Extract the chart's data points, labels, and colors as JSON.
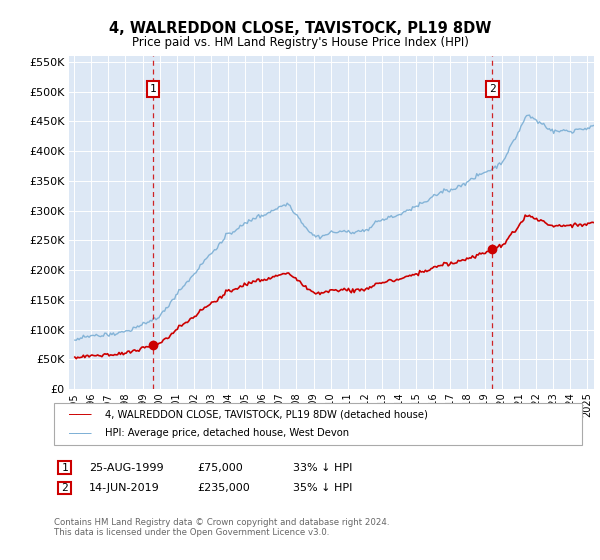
{
  "title": "4, WALREDDON CLOSE, TAVISTOCK, PL19 8DW",
  "subtitle": "Price paid vs. HM Land Registry's House Price Index (HPI)",
  "legend_line1": "4, WALREDDON CLOSE, TAVISTOCK, PL19 8DW (detached house)",
  "legend_line2": "HPI: Average price, detached house, West Devon",
  "transaction1_date": "25-AUG-1999",
  "transaction1_price": 75000,
  "transaction1_hpi": "33% ↓ HPI",
  "transaction2_date": "14-JUN-2019",
  "transaction2_price": 235000,
  "transaction2_hpi": "35% ↓ HPI",
  "footer": "Contains HM Land Registry data © Crown copyright and database right 2024.\nThis data is licensed under the Open Government Licence v3.0.",
  "property_color": "#cc0000",
  "hpi_color": "#7aaed4",
  "background_color": "#dde8f5",
  "ylim": [
    0,
    560000
  ],
  "yticks": [
    0,
    50000,
    100000,
    150000,
    200000,
    250000,
    300000,
    350000,
    400000,
    450000,
    500000,
    550000
  ],
  "t1_year": 1999.625,
  "t2_year": 2019.458
}
